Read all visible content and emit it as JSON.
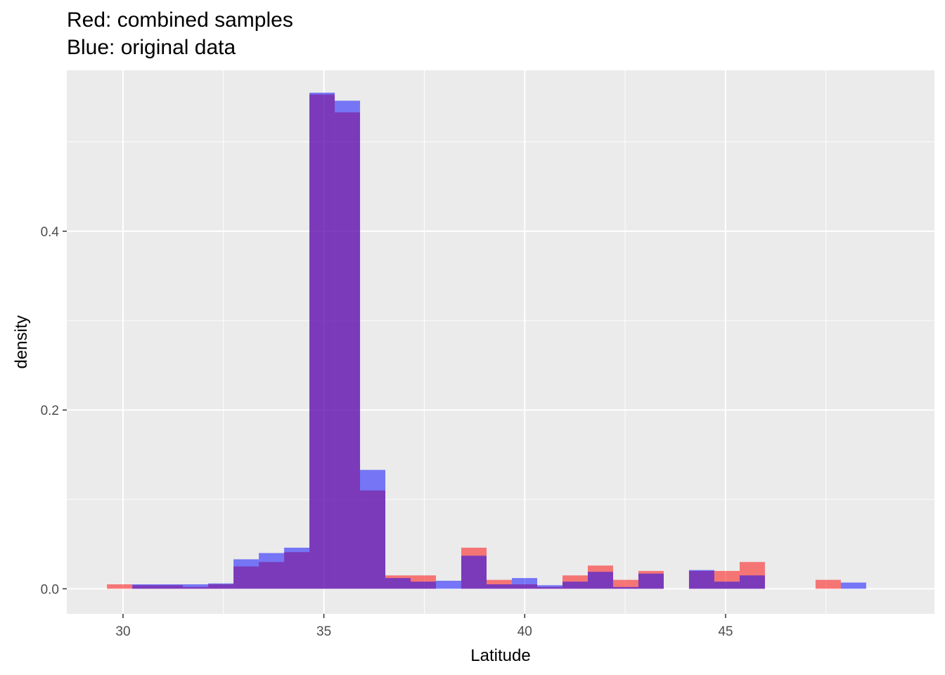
{
  "title_lines": [
    "Red: combined samples",
    "Blue: original data"
  ],
  "colors": {
    "panel": "#ebebeb",
    "grid_major": "#ffffff",
    "red": "#f8766d",
    "red_fill": "rgba(255,0,0,0.5)",
    "blue_fill": "rgba(0,0,255,0.5)"
  },
  "chart_data": {
    "type": "bar",
    "xlabel": "Latitude",
    "ylabel": "density",
    "xlim": [
      28.6,
      50.2
    ],
    "ylim": [
      -0.028,
      0.58
    ],
    "x_ticks": [
      30,
      35,
      40,
      45
    ],
    "y_ticks": [
      0.0,
      0.2,
      0.4
    ],
    "x_tick_labels": [
      "30",
      "35",
      "40",
      "45"
    ],
    "y_tick_labels": [
      "0.0",
      "0.2",
      "0.4"
    ],
    "grid": true,
    "bin_start": 29.6,
    "bin_width": 0.63,
    "series": [
      {
        "name": "combined samples",
        "color": "red",
        "values": [
          0.005,
          0.004,
          0.004,
          0.002,
          0.005,
          0.025,
          0.03,
          0.041,
          0.553,
          0.533,
          0.11,
          0.015,
          0.015,
          0.0,
          0.046,
          0.01,
          0.005,
          0.002,
          0.015,
          0.026,
          0.01,
          0.02,
          0.0,
          0.02,
          0.02,
          0.03,
          0.0,
          0.0,
          0.01,
          0.0
        ]
      },
      {
        "name": "original data",
        "color": "blue",
        "values": [
          0.0,
          0.005,
          0.005,
          0.005,
          0.006,
          0.033,
          0.04,
          0.046,
          0.555,
          0.546,
          0.133,
          0.012,
          0.008,
          0.009,
          0.037,
          0.005,
          0.012,
          0.004,
          0.008,
          0.019,
          0.002,
          0.017,
          0.0,
          0.021,
          0.008,
          0.015,
          0.0,
          0.0,
          0.0,
          0.007
        ]
      }
    ]
  }
}
